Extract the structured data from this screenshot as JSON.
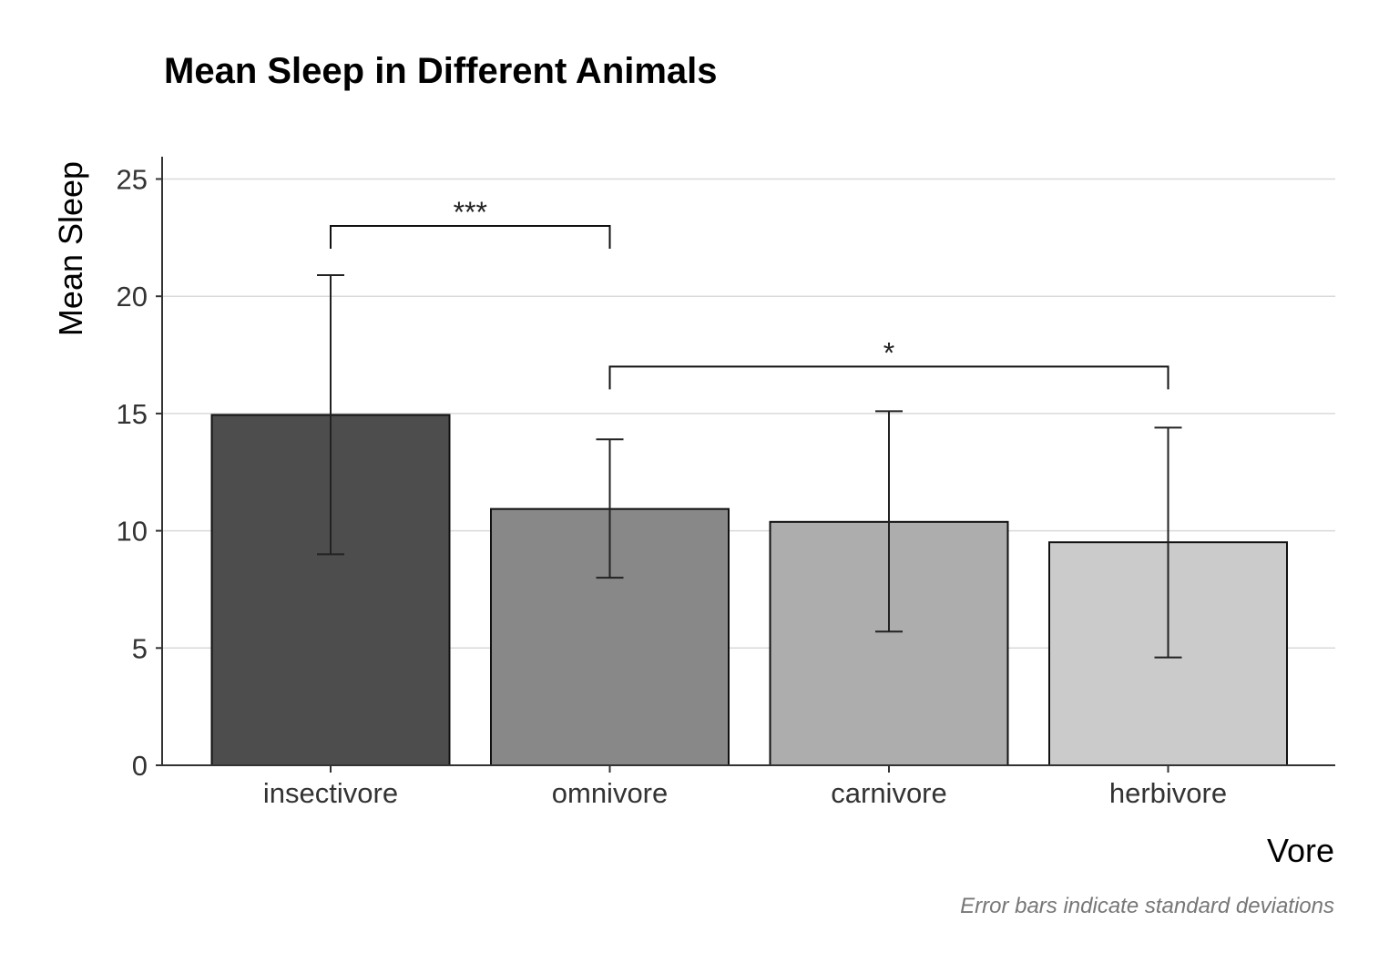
{
  "chart_data": {
    "type": "bar",
    "title": "Mean Sleep in Different Animals",
    "xlabel": "Vore",
    "ylabel": "Mean Sleep",
    "caption": "Error bars indicate standard deviations",
    "categories": [
      "insectivore",
      "omnivore",
      "carnivore",
      "herbivore"
    ],
    "values": [
      14.94,
      10.93,
      10.38,
      9.51
    ],
    "error_low": [
      9.0,
      8.0,
      5.7,
      4.6
    ],
    "error_high": [
      20.9,
      13.9,
      15.1,
      14.4
    ],
    "colors": [
      "#4d4d4d",
      "#888888",
      "#adadad",
      "#cbcbcb"
    ],
    "ylim": [
      0,
      26
    ],
    "yticks": [
      0,
      5,
      10,
      15,
      20,
      25
    ],
    "grid": true,
    "legend": "none",
    "significance": [
      {
        "from": "insectivore",
        "to": "omnivore",
        "label": "***",
        "y": 23.0
      },
      {
        "from": "omnivore",
        "to": "herbivore",
        "label": "*",
        "y": 17.0
      }
    ]
  }
}
